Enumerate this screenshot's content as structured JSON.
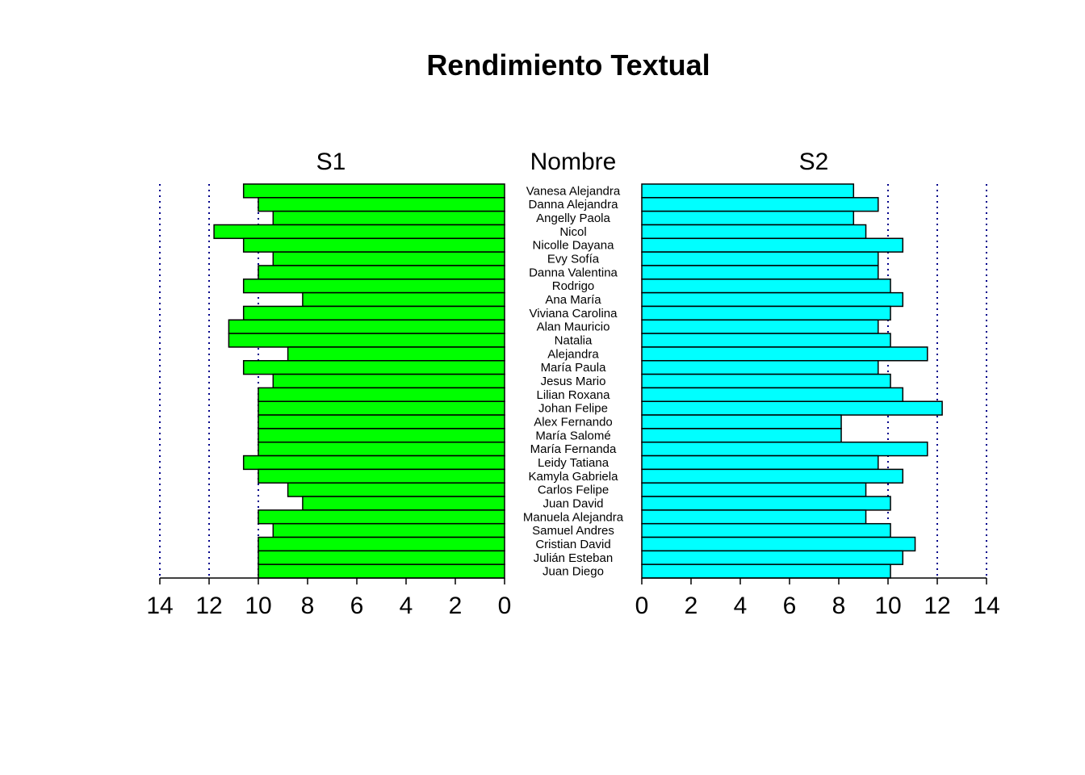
{
  "chart_data": {
    "type": "bar",
    "title": "Rendimiento Textual",
    "categories_label": "Nombre",
    "categories": [
      "Vanesa Alejandra",
      "Danna Alejandra",
      "Angelly Paola",
      "Nicol",
      "Nicolle Dayana",
      "Evy Sofía",
      "Danna Valentina",
      "Rodrigo",
      "Ana María",
      "Viviana Carolina",
      "Alan Mauricio",
      "Natalia",
      "Alejandra",
      "María Paula",
      "Jesus Mario",
      "Lilian Roxana",
      "Johan Felipe",
      "Alex Fernando",
      "María Salomé",
      "María Fernanda",
      "Leidy Tatiana",
      "Kamyla Gabriela",
      "Carlos Felipe",
      "Juan David",
      "Manuela Alejandra",
      "Samuel Andres",
      "Cristian David",
      "Julián Esteban",
      "Juan Diego"
    ],
    "series": [
      {
        "name": "S1",
        "color": "#00ff00",
        "values": [
          10.6,
          10.0,
          9.4,
          11.8,
          10.6,
          9.4,
          10.0,
          10.6,
          8.2,
          10.6,
          11.2,
          11.2,
          8.8,
          10.6,
          9.4,
          10.0,
          10.0,
          10.0,
          10.0,
          10.0,
          10.6,
          10.0,
          8.8,
          8.2,
          10.0,
          9.4,
          10.0,
          10.0,
          10.0
        ]
      },
      {
        "name": "S2",
        "color": "#00ffff",
        "values": [
          8.6,
          9.6,
          8.6,
          9.1,
          10.6,
          9.6,
          9.6,
          10.1,
          10.6,
          10.1,
          9.6,
          10.1,
          11.6,
          9.6,
          10.1,
          10.6,
          12.2,
          8.1,
          8.1,
          11.6,
          9.6,
          10.6,
          9.1,
          10.1,
          9.1,
          10.1,
          11.1,
          10.6,
          10.1
        ]
      }
    ],
    "xlim": [
      0,
      14
    ],
    "ticks": [
      "0",
      "2",
      "4",
      "6",
      "8",
      "10",
      "12",
      "14"
    ],
    "gridlines": [
      10,
      12,
      14
    ],
    "grid_color": "#00008b",
    "legend": "none"
  }
}
